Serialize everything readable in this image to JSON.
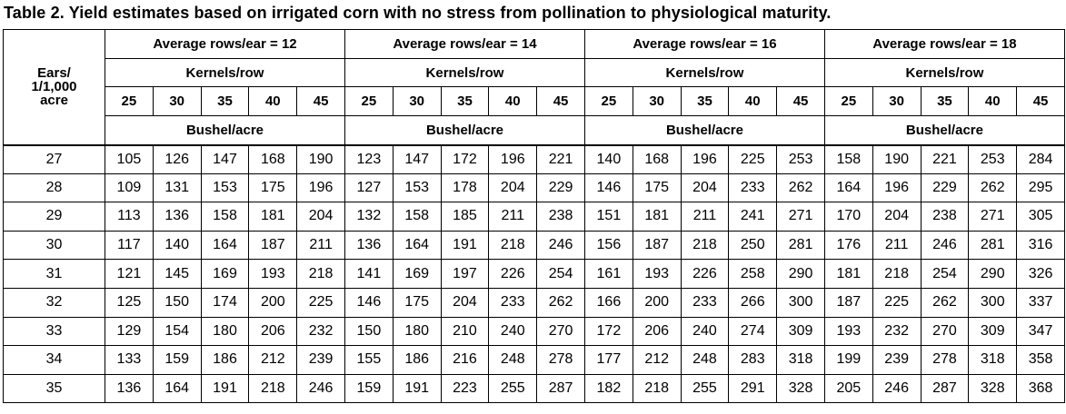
{
  "title": "Table 2.  Yield estimates based on irrigated corn with no stress from pollination to physiological maturity.",
  "ears_header": [
    "Ears/",
    "1/1,000",
    "acre"
  ],
  "groups": [
    {
      "label": "Average rows/ear = 12",
      "sub_label": "Kernels/row",
      "unit_label": "Bushel/acre"
    },
    {
      "label": "Average rows/ear = 14",
      "sub_label": "Kernels/row",
      "unit_label": "Bushel/acre"
    },
    {
      "label": "Average rows/ear = 16",
      "sub_label": "Kernels/row",
      "unit_label": "Bushel/acre"
    },
    {
      "label": "Average rows/ear = 18",
      "sub_label": "Kernels/row",
      "unit_label": "Bushel/acre"
    }
  ],
  "kernels": [
    "25",
    "30",
    "35",
    "40",
    "45"
  ],
  "rows": [
    {
      "ears": "27",
      "values": [
        "105",
        "126",
        "147",
        "168",
        "190",
        "123",
        "147",
        "172",
        "196",
        "221",
        "140",
        "168",
        "196",
        "225",
        "253",
        "158",
        "190",
        "221",
        "253",
        "284"
      ]
    },
    {
      "ears": "28",
      "values": [
        "109",
        "131",
        "153",
        "175",
        "196",
        "127",
        "153",
        "178",
        "204",
        "229",
        "146",
        "175",
        "204",
        "233",
        "262",
        "164",
        "196",
        "229",
        "262",
        "295"
      ]
    },
    {
      "ears": "29",
      "values": [
        "113",
        "136",
        "158",
        "181",
        "204",
        "132",
        "158",
        "185",
        "211",
        "238",
        "151",
        "181",
        "211",
        "241",
        "271",
        "170",
        "204",
        "238",
        "271",
        "305"
      ]
    },
    {
      "ears": "30",
      "values": [
        "117",
        "140",
        "164",
        "187",
        "211",
        "136",
        "164",
        "191",
        "218",
        "246",
        "156",
        "187",
        "218",
        "250",
        "281",
        "176",
        "211",
        "246",
        "281",
        "316"
      ]
    },
    {
      "ears": "31",
      "values": [
        "121",
        "145",
        "169",
        "193",
        "218",
        "141",
        "169",
        "197",
        "226",
        "254",
        "161",
        "193",
        "226",
        "258",
        "290",
        "181",
        "218",
        "254",
        "290",
        "326"
      ]
    },
    {
      "ears": "32",
      "values": [
        "125",
        "150",
        "174",
        "200",
        "225",
        "146",
        "175",
        "204",
        "233",
        "262",
        "166",
        "200",
        "233",
        "266",
        "300",
        "187",
        "225",
        "262",
        "300",
        "337"
      ]
    },
    {
      "ears": "33",
      "values": [
        "129",
        "154",
        "180",
        "206",
        "232",
        "150",
        "180",
        "210",
        "240",
        "270",
        "172",
        "206",
        "240",
        "274",
        "309",
        "193",
        "232",
        "270",
        "309",
        "347"
      ]
    },
    {
      "ears": "34",
      "values": [
        "133",
        "159",
        "186",
        "212",
        "239",
        "155",
        "186",
        "216",
        "248",
        "278",
        "177",
        "212",
        "248",
        "283",
        "318",
        "199",
        "239",
        "278",
        "318",
        "358"
      ]
    },
    {
      "ears": "35",
      "values": [
        "136",
        "164",
        "191",
        "218",
        "246",
        "159",
        "191",
        "223",
        "255",
        "287",
        "182",
        "218",
        "255",
        "291",
        "328",
        "205",
        "246",
        "287",
        "328",
        "368"
      ]
    }
  ]
}
